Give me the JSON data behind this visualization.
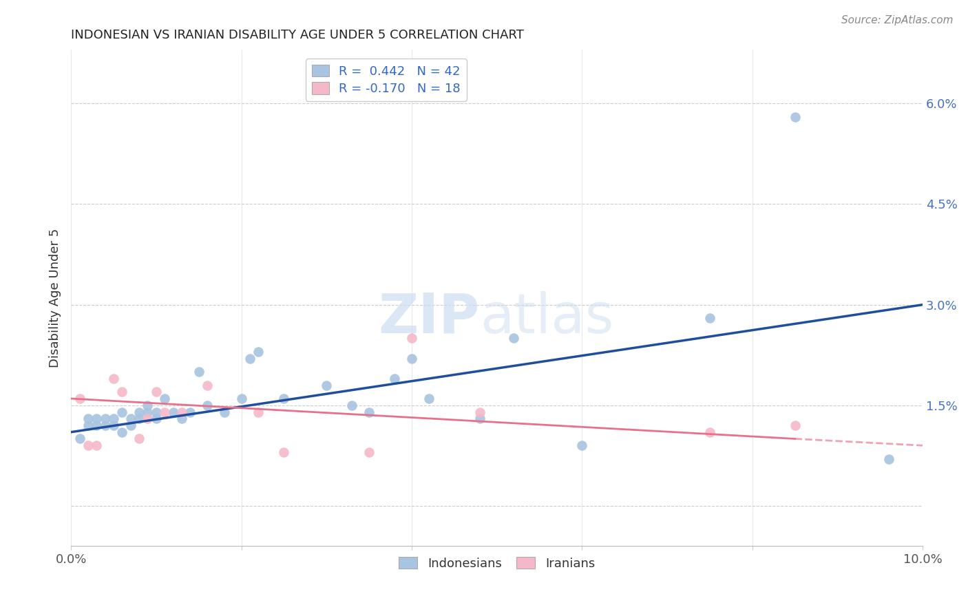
{
  "title": "INDONESIAN VS IRANIAN DISABILITY AGE UNDER 5 CORRELATION CHART",
  "source": "Source: ZipAtlas.com",
  "ylabel": "Disability Age Under 5",
  "xlim": [
    0.0,
    0.1
  ],
  "ylim": [
    -0.006,
    0.068
  ],
  "legend_r_indo": "R =  0.442",
  "legend_n_indo": "N = 42",
  "legend_r_iran": "R = -0.170",
  "legend_n_iran": "N = 18",
  "color_indo": "#a8c4e0",
  "color_iran": "#f5b8c8",
  "line_color_indo": "#1f4e9e",
  "line_color_iran": "#e8708a",
  "watermark_color": "#cdddf0",
  "indo_x": [
    0.001,
    0.002,
    0.002,
    0.003,
    0.003,
    0.004,
    0.004,
    0.005,
    0.005,
    0.006,
    0.006,
    0.007,
    0.007,
    0.008,
    0.008,
    0.009,
    0.009,
    0.01,
    0.01,
    0.011,
    0.012,
    0.013,
    0.014,
    0.015,
    0.016,
    0.018,
    0.02,
    0.021,
    0.022,
    0.025,
    0.03,
    0.033,
    0.035,
    0.038,
    0.04,
    0.042,
    0.048,
    0.052,
    0.06,
    0.075,
    0.085,
    0.096
  ],
  "indo_y": [
    0.01,
    0.012,
    0.013,
    0.012,
    0.013,
    0.012,
    0.013,
    0.012,
    0.013,
    0.011,
    0.014,
    0.012,
    0.013,
    0.013,
    0.014,
    0.014,
    0.015,
    0.013,
    0.014,
    0.016,
    0.014,
    0.013,
    0.014,
    0.02,
    0.015,
    0.014,
    0.016,
    0.022,
    0.023,
    0.016,
    0.018,
    0.015,
    0.014,
    0.019,
    0.022,
    0.016,
    0.013,
    0.025,
    0.009,
    0.028,
    0.058,
    0.007
  ],
  "iran_x": [
    0.001,
    0.002,
    0.003,
    0.005,
    0.006,
    0.008,
    0.009,
    0.01,
    0.011,
    0.013,
    0.016,
    0.022,
    0.025,
    0.035,
    0.04,
    0.048,
    0.075,
    0.085
  ],
  "iran_y": [
    0.016,
    0.009,
    0.009,
    0.019,
    0.017,
    0.01,
    0.013,
    0.017,
    0.014,
    0.014,
    0.018,
    0.014,
    0.008,
    0.008,
    0.025,
    0.014,
    0.011,
    0.012
  ],
  "line_indo_x0": 0.0,
  "line_indo_x1": 0.1,
  "line_indo_y0": 0.011,
  "line_indo_y1": 0.03,
  "line_iran_x0": 0.0,
  "line_iran_x1": 0.085,
  "line_iran_x2": 0.1,
  "line_iran_y0": 0.016,
  "line_iran_y1": 0.01,
  "line_iran_y2": 0.009
}
